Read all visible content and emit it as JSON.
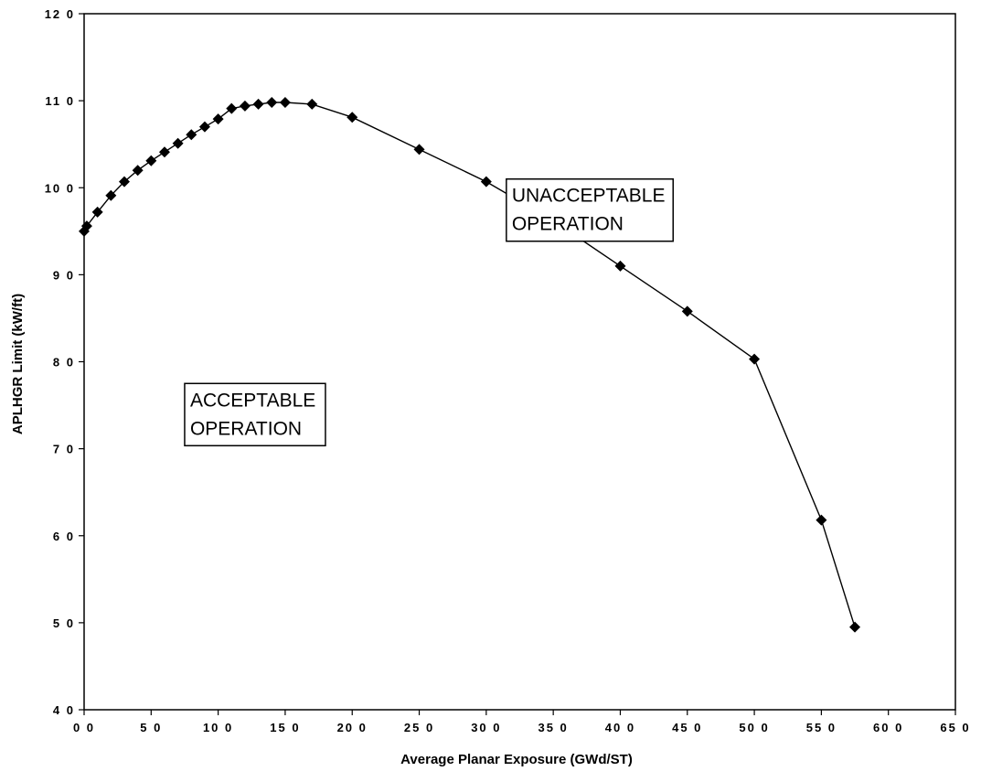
{
  "chart_data": {
    "type": "line",
    "xlabel": "Average Planar Exposure (GWd/ST)",
    "ylabel": "APLHGR Limit (kW/ft)",
    "xlim": [
      0,
      65
    ],
    "ylim": [
      4,
      12
    ],
    "x_ticks": [
      0,
      5,
      10,
      15,
      20,
      25,
      30,
      35,
      40,
      45,
      50,
      55,
      60,
      65
    ],
    "x_tick_labels": [
      "0 0",
      "5 0",
      "10 0",
      "15 0",
      "20 0",
      "25 0",
      "30 0",
      "35 0",
      "40 0",
      "45 0",
      "50 0",
      "55 0",
      "60 0",
      "65 0"
    ],
    "y_ticks": [
      4,
      5,
      6,
      7,
      8,
      9,
      10,
      11,
      12
    ],
    "y_tick_labels": [
      "4 0",
      "5 0",
      "6 0",
      "7 0",
      "8 0",
      "9 0",
      "10 0",
      "11 0",
      "12 0"
    ],
    "grid": true,
    "series": [
      {
        "marker": "diamond",
        "color": "#000000",
        "x": [
          0.0,
          0.2,
          1.0,
          2.0,
          3.0,
          4.0,
          5.0,
          6.0,
          7.0,
          8.0,
          9.0,
          10.0,
          11.0,
          12.0,
          13.0,
          14.0,
          15.0,
          17.0,
          20.0,
          25.0,
          30.0,
          35.0,
          40.0,
          45.0,
          50.0,
          55.0,
          57.5
        ],
        "y": [
          9.5,
          9.56,
          9.72,
          9.91,
          10.07,
          10.2,
          10.31,
          10.41,
          10.51,
          10.61,
          10.7,
          10.79,
          10.91,
          10.94,
          10.96,
          10.98,
          10.98,
          10.96,
          10.81,
          10.44,
          10.07,
          9.62,
          9.1,
          8.58,
          8.03,
          6.18,
          4.95
        ]
      }
    ],
    "annotations": [
      {
        "lines": [
          "UNACCEPTABLE",
          "OPERATION"
        ],
        "anchor_x": 31.5,
        "anchor_y": 10.1
      },
      {
        "lines": [
          "ACCEPTABLE",
          "OPERATION"
        ],
        "anchor_x": 7.5,
        "anchor_y": 7.75
      }
    ]
  }
}
